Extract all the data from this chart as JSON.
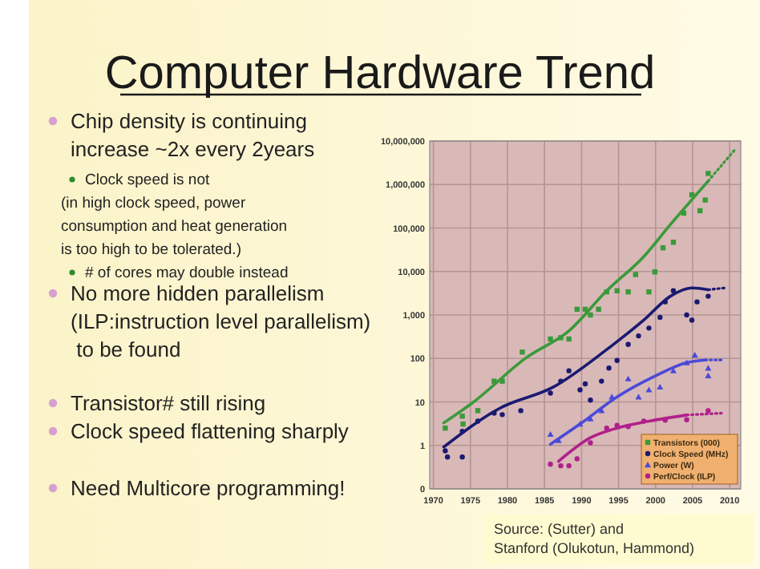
{
  "chart_data": {
    "type": "scatter",
    "title": "Computer Hardware Trend",
    "annotations": [
      "Chip density is continuing\nincrease ~2x every 2years",
      "Clock speed is not\n(in high clock speed, power\nconsumption and heat generation\nis too high to be tolerated.)",
      "# of cores may double instead",
      "No more hidden parallelism\n(ILP:instruction level parallelism)\n to be found",
      "Transistor# still rising",
      "Clock speed flattening sharply",
      "Need Multicore programming!",
      "Source: (Sutter) and\nStanford (Olukotun, Hammond)"
    ],
    "log": "y",
    "grid": true,
    "legend": "bottom right",
    "xlim": [
      1969.5,
      2011.5
    ],
    "xticks": [
      1970,
      1975,
      1980,
      1985,
      1990,
      1995,
      2000,
      2005,
      2010
    ],
    "ylim": [
      0.1,
      10000000
    ],
    "yticks": [
      {
        "value": 0.1,
        "label": "0"
      },
      1,
      10,
      100,
      {
        "value": 1000,
        "label": "1,000"
      },
      {
        "value": 10000,
        "label": "10,000"
      },
      {
        "value": 100000,
        "label": "100,000"
      },
      {
        "value": 1000000,
        "label": "1,000,000"
      },
      {
        "value": 10000000,
        "label": "10,000,000"
      }
    ],
    "series": [
      {
        "name": "Transistors (000)",
        "color": "#3a9a3a",
        "marker": "square",
        "x": [
          1971.6,
          1973.9,
          1974,
          1976,
          1978.2,
          1979.3,
          1982,
          1985.8,
          1987.2,
          1988.3,
          1989.4,
          1990.5,
          1991.2,
          1992.3,
          1993.4,
          1994.8,
          1996.3,
          1999.1,
          1997.3,
          1999.9,
          2001,
          2002.4,
          2003.8,
          2004.9,
          2006,
          2007.1,
          2006.7
        ],
        "values": [
          2.5,
          4.7,
          3.1,
          6.3,
          30,
          30,
          140,
          280,
          300,
          280,
          1350,
          1350,
          1000,
          1350,
          3400,
          3600,
          3400,
          3400,
          8500,
          9800,
          35000,
          47000,
          220000,
          580000,
          250000,
          1800000,
          440000
        ]
      },
      {
        "name": "Clock Speed (MHz)",
        "color": "#1a1a70",
        "marker": "circle",
        "x": [
          1971.6,
          1971.9,
          1973.9,
          1973.9,
          1976,
          1978.2,
          1979.3,
          1981.8,
          1985.8,
          1987.2,
          1988.3,
          1989.8,
          1990.5,
          1991.2,
          1992.7,
          1993.7,
          1994.8,
          1996.3,
          1997.7,
          1999.1,
          2000.6,
          2001.3,
          2002.4,
          2004.2,
          2004.9,
          2005.6,
          2007.1
        ],
        "values": [
          0.75,
          0.54,
          0.54,
          2.1,
          3.6,
          5.5,
          5.1,
          6.3,
          16,
          30,
          52,
          19,
          26,
          11,
          30,
          60,
          90,
          210,
          330,
          500,
          880,
          2000,
          3600,
          1000,
          760,
          2000,
          2700
        ]
      },
      {
        "name": "Power (W)",
        "color": "#4a4ad8",
        "marker": "triangle",
        "x": [
          1985.8,
          1986.9,
          1989.8,
          1991.2,
          1992.7,
          1994.1,
          1996.3,
          1997.7,
          1999.1,
          2000.6,
          2002.4,
          2004.2,
          2005.3,
          2007.1,
          2007.1
        ],
        "values": [
          1.8,
          1.3,
          3.1,
          4.1,
          6.3,
          13,
          34,
          13,
          19,
          22,
          52,
          80,
          120,
          60,
          40
        ]
      },
      {
        "name": "Perf/Clock (ILP)",
        "color": "#b0208a",
        "marker": "circle",
        "x": [
          1985.8,
          1987.2,
          1988.3,
          1989.4,
          1991.2,
          1993.4,
          1994.8,
          1996.3,
          1998.4,
          2001.3,
          2004.2,
          2007.1
        ],
        "values": [
          0.37,
          0.34,
          0.34,
          0.49,
          1.15,
          2.5,
          2.9,
          2.7,
          3.6,
          3.8,
          3.9,
          6.3
        ]
      },
      {
        "type": "line",
        "color": "#3a9a3a",
        "line_style": "solid",
        "x": [
          1971.4,
          1975.3,
          1982.6,
          1988.3,
          1993.4,
          1998.4,
          2002,
          2007.1
        ],
        "values": [
          3.3,
          9.6,
          106,
          430,
          3600,
          22000,
          120000,
          1200000
        ]
      },
      {
        "type": "line",
        "color": "#3a9a3a",
        "line_style": "dotted",
        "x": [
          2007.1,
          2010.7
        ],
        "values": [
          1200000,
          6300000
        ]
      },
      {
        "type": "line",
        "color": "#1a1a70",
        "line_style": "solid",
        "x": [
          1971.4,
          1979,
          1986.2,
          1993.4,
          1998.4,
          2002,
          2004.9,
          2007.1
        ],
        "values": [
          0.92,
          7.2,
          22,
          160,
          760,
          2700,
          4200,
          3800
        ]
      },
      {
        "type": "line",
        "color": "#1a1a70",
        "line_style": "dotted",
        "x": [
          2007.1,
          2009.4
        ],
        "values": [
          3800,
          4200
        ]
      },
      {
        "type": "line",
        "color": "#4a4ad8",
        "line_style": "solid",
        "x": [
          1985.8,
          1989.8,
          1994.8,
          1999.9,
          2004.2,
          2006.7
        ],
        "values": [
          1.06,
          3.1,
          13,
          39,
          80,
          92
        ]
      },
      {
        "type": "line",
        "color": "#4a4ad8",
        "line_style": "dotted",
        "x": [
          2006.7,
          2009.1
        ],
        "values": [
          92,
          92
        ]
      },
      {
        "type": "line",
        "color": "#b0208a",
        "line_style": "solid",
        "x": [
          1986.9,
          1991.2,
          1994.8,
          1999.1,
          2004.2
        ],
        "values": [
          0.43,
          1.5,
          2.5,
          3.6,
          5.0
        ]
      },
      {
        "type": "line",
        "color": "#b0208a",
        "line_style": "dotted",
        "x": [
          2004.2,
          2008.9
        ],
        "values": [
          5.0,
          5.5
        ]
      }
    ]
  }
}
